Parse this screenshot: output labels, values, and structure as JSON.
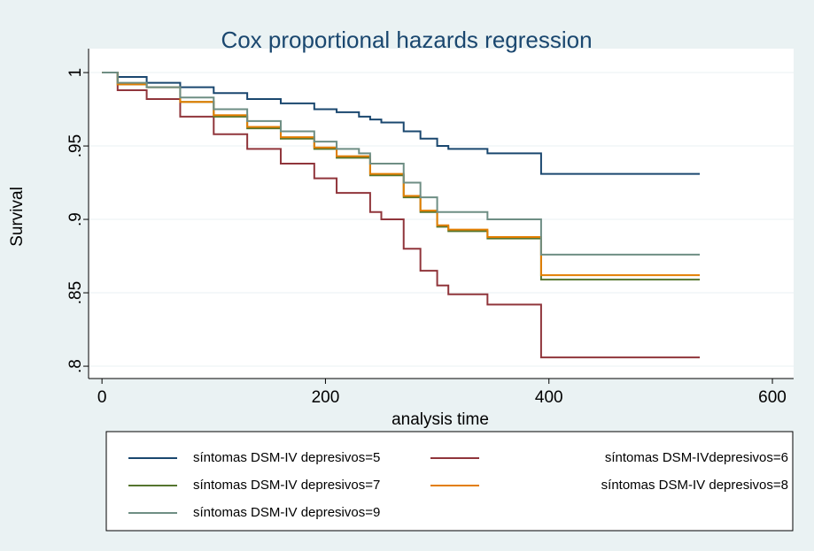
{
  "chart_data": {
    "type": "step",
    "title": "Cox proportional hazards regression",
    "x_label": "analysis time",
    "y_label": "Survival",
    "x": [
      0,
      14,
      40,
      70,
      100,
      130,
      160,
      190,
      210,
      230,
      240,
      250,
      270,
      285,
      300,
      310,
      345,
      393,
      535
    ],
    "series": [
      {
        "name": "síntomas DSM-IV depresivos=5",
        "color": "#1a476f",
        "values": [
          1,
          0.997,
          0.993,
          0.99,
          0.986,
          0.982,
          0.979,
          0.975,
          0.973,
          0.97,
          0.968,
          0.966,
          0.96,
          0.955,
          0.95,
          0.948,
          0.945,
          0.931,
          0.931
        ]
      },
      {
        "name": "síntomas DSM-IVdepresivos=6",
        "color": "#90353b",
        "values": [
          1,
          0.988,
          0.982,
          0.97,
          0.958,
          0.948,
          0.938,
          0.928,
          0.918,
          0.918,
          0.905,
          0.9,
          0.88,
          0.865,
          0.855,
          0.849,
          0.842,
          0.806,
          0.806
        ]
      },
      {
        "name": "síntomas DSM-IV depresivos=7",
        "color": "#55752f",
        "values": [
          1,
          0.992,
          0.99,
          0.98,
          0.97,
          0.962,
          0.955,
          0.948,
          0.942,
          0.942,
          0.93,
          0.93,
          0.915,
          0.905,
          0.895,
          0.892,
          0.887,
          0.859,
          0.859
        ]
      },
      {
        "name": "síntomas DSM-IV depresivos=8",
        "color": "#e37e00",
        "values": [
          1,
          0.992,
          0.99,
          0.98,
          0.971,
          0.963,
          0.956,
          0.949,
          0.943,
          0.943,
          0.931,
          0.931,
          0.916,
          0.906,
          0.896,
          0.893,
          0.888,
          0.862,
          0.862
        ]
      },
      {
        "name": "síntomas DSM-IV depresivos=9",
        "color": "#6e8e84",
        "values": [
          1,
          0.993,
          0.99,
          0.983,
          0.975,
          0.967,
          0.96,
          0.953,
          0.948,
          0.945,
          0.938,
          0.938,
          0.925,
          0.915,
          0.905,
          0.905,
          0.9,
          0.876,
          0.876
        ]
      }
    ],
    "xlim": [
      -12,
      619
    ],
    "ylim": [
      0.7916,
      1.0163
    ],
    "xticks": [
      0,
      200,
      400,
      600
    ],
    "yticks": [
      {
        "value": 0.8,
        "label": ".8"
      },
      {
        "value": 0.85,
        "label": ".85"
      },
      {
        "value": 0.9,
        "label": ".9"
      },
      {
        "value": 0.95,
        "label": ".95"
      },
      1
    ],
    "grid": true
  }
}
